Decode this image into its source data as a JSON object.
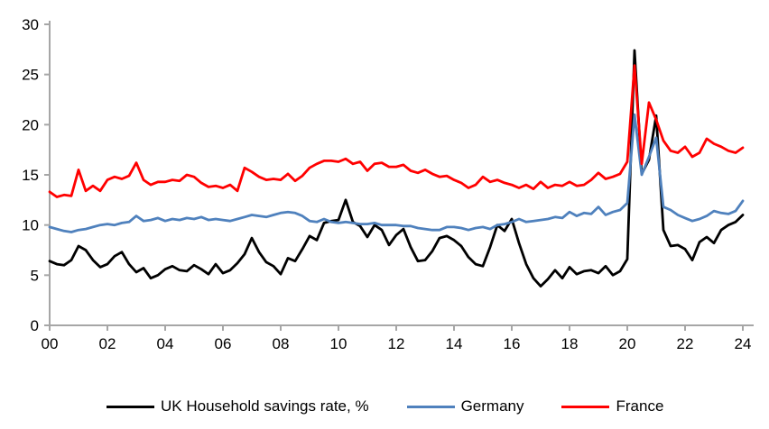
{
  "legend": {
    "items": [
      {
        "id": "uk",
        "label": "UK Household savings rate, %",
        "color": "#000000"
      },
      {
        "id": "germany",
        "label": "Germany",
        "color": "#4f81bd"
      },
      {
        "id": "france",
        "label": "France",
        "color": "#ff0000"
      }
    ]
  },
  "axes": {
    "y_ticks": [
      "0",
      "5",
      "10",
      "15",
      "20",
      "25",
      "30"
    ],
    "x_ticks": [
      "00",
      "02",
      "04",
      "06",
      "08",
      "10",
      "12",
      "14",
      "16",
      "18",
      "20",
      "22",
      "24"
    ],
    "axis_color": "#a6a6a6",
    "label_color": "#000000"
  },
  "chart_data": {
    "type": "line",
    "x_unit": "quarterly",
    "x_start": "2000Q1",
    "x_end": "2024Q1",
    "ylim": [
      0,
      30
    ],
    "y_tick_step": 5,
    "grid": false,
    "legend_position": "bottom",
    "series": [
      {
        "name": "UK Household savings rate, %",
        "color": "#000000",
        "values": [
          6.4,
          6.1,
          6.0,
          6.5,
          7.9,
          7.5,
          6.5,
          5.8,
          6.1,
          6.9,
          7.3,
          6.1,
          5.3,
          5.7,
          4.7,
          5.0,
          5.6,
          5.9,
          5.5,
          5.4,
          6.0,
          5.6,
          5.1,
          6.1,
          5.2,
          5.5,
          6.2,
          7.1,
          8.7,
          7.3,
          6.3,
          5.9,
          5.1,
          6.7,
          6.4,
          7.6,
          8.9,
          8.5,
          10.2,
          10.4,
          10.5,
          12.5,
          10.3,
          9.9,
          8.8,
          10.0,
          9.5,
          8.0,
          9.0,
          9.6,
          7.8,
          6.4,
          6.5,
          7.4,
          8.7,
          8.9,
          8.5,
          7.9,
          6.8,
          6.1,
          5.9,
          7.8,
          10.0,
          9.4,
          10.6,
          8.2,
          6.1,
          4.7,
          3.9,
          4.6,
          5.5,
          4.7,
          5.8,
          5.1,
          5.4,
          5.5,
          5.2,
          5.9,
          5.0,
          5.4,
          6.6,
          27.4,
          15.1,
          16.5,
          20.9,
          9.5,
          7.9,
          8.0,
          7.6,
          6.5,
          8.3,
          8.8,
          8.2,
          9.5,
          10.0,
          10.3,
          11.0
        ]
      },
      {
        "name": "Germany",
        "color": "#4f81bd",
        "values": [
          9.8,
          9.6,
          9.4,
          9.3,
          9.5,
          9.6,
          9.8,
          10.0,
          10.1,
          10.0,
          10.2,
          10.3,
          10.9,
          10.4,
          10.5,
          10.7,
          10.4,
          10.6,
          10.5,
          10.7,
          10.6,
          10.8,
          10.5,
          10.6,
          10.5,
          10.4,
          10.6,
          10.8,
          11.0,
          10.9,
          10.8,
          11.0,
          11.2,
          11.3,
          11.2,
          10.9,
          10.4,
          10.3,
          10.6,
          10.3,
          10.2,
          10.3,
          10.2,
          10.1,
          10.1,
          10.2,
          10.0,
          10.0,
          10.0,
          9.9,
          9.9,
          9.7,
          9.6,
          9.5,
          9.5,
          9.8,
          9.8,
          9.7,
          9.5,
          9.7,
          9.8,
          9.6,
          10.0,
          10.1,
          10.3,
          10.6,
          10.3,
          10.4,
          10.5,
          10.6,
          10.8,
          10.7,
          11.3,
          10.9,
          11.2,
          11.1,
          11.8,
          11.0,
          11.3,
          11.5,
          12.2,
          21.0,
          15.0,
          16.8,
          18.7,
          11.8,
          11.5,
          11.0,
          10.7,
          10.4,
          10.6,
          10.9,
          11.4,
          11.2,
          11.1,
          11.4,
          12.4
        ]
      },
      {
        "name": "France",
        "color": "#ff0000",
        "values": [
          13.3,
          12.8,
          13.0,
          12.9,
          15.5,
          13.4,
          13.9,
          13.4,
          14.5,
          14.8,
          14.6,
          14.9,
          16.2,
          14.5,
          14.0,
          14.3,
          14.3,
          14.5,
          14.4,
          15.0,
          14.8,
          14.2,
          13.8,
          13.9,
          13.7,
          14.0,
          13.4,
          15.7,
          15.3,
          14.8,
          14.5,
          14.6,
          14.5,
          15.1,
          14.4,
          14.9,
          15.7,
          16.1,
          16.4,
          16.4,
          16.3,
          16.6,
          16.1,
          16.3,
          15.4,
          16.1,
          16.2,
          15.8,
          15.8,
          16.0,
          15.4,
          15.2,
          15.5,
          15.1,
          14.8,
          14.9,
          14.5,
          14.2,
          13.7,
          14.0,
          14.8,
          14.3,
          14.5,
          14.2,
          14.0,
          13.7,
          14.0,
          13.6,
          14.3,
          13.7,
          14.0,
          13.9,
          14.3,
          13.9,
          14.0,
          14.5,
          15.2,
          14.6,
          14.8,
          15.1,
          16.3,
          25.9,
          16.1,
          22.2,
          20.5,
          18.4,
          17.4,
          17.2,
          17.8,
          16.8,
          17.2,
          18.6,
          18.1,
          17.8,
          17.4,
          17.2,
          17.7
        ]
      }
    ]
  }
}
